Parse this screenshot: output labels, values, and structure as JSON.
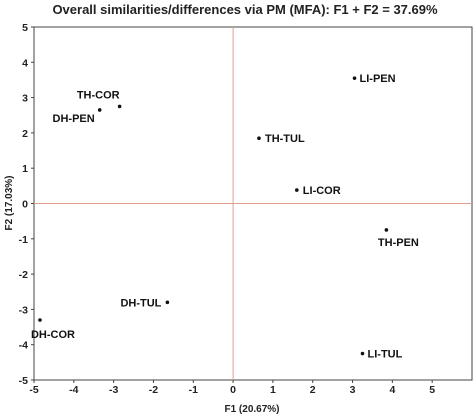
{
  "chart_data": {
    "type": "scatter",
    "title": "Overall similarities/differences via PM (MFA): F1 + F2 = 37.69%",
    "xlabel": "F1 (20.67%)",
    "ylabel": "F2 (17.03%)",
    "xlim": [
      -5,
      6
    ],
    "ylim": [
      -5,
      5
    ],
    "xticks": [
      "-5",
      "-4",
      "-3",
      "-2",
      "-1",
      "0",
      "1",
      "2",
      "3",
      "4",
      "5"
    ],
    "yticks": [
      "-5",
      "-4",
      "-3",
      "-2",
      "-1",
      "0",
      "1",
      "2",
      "3",
      "4",
      "5"
    ],
    "grid": false,
    "points": [
      {
        "label": "TH-COR",
        "x": -2.85,
        "y": 2.75
      },
      {
        "label": "DH-PEN",
        "x": -3.35,
        "y": 2.65
      },
      {
        "label": "TH-TUL",
        "x": 0.65,
        "y": 1.85
      },
      {
        "label": "LI-PEN",
        "x": 3.05,
        "y": 3.55
      },
      {
        "label": "LI-COR",
        "x": 1.6,
        "y": 0.38
      },
      {
        "label": "TH-PEN",
        "x": 3.85,
        "y": -0.75
      },
      {
        "label": "DH-TUL",
        "x": -1.65,
        "y": -2.8
      },
      {
        "label": "DH-COR",
        "x": -4.85,
        "y": -3.3
      },
      {
        "label": "LI-TUL",
        "x": 3.25,
        "y": -4.25
      }
    ],
    "colors": {
      "axes": "#444444",
      "origin_lines": "#e0a090",
      "points": "#111111"
    }
  }
}
